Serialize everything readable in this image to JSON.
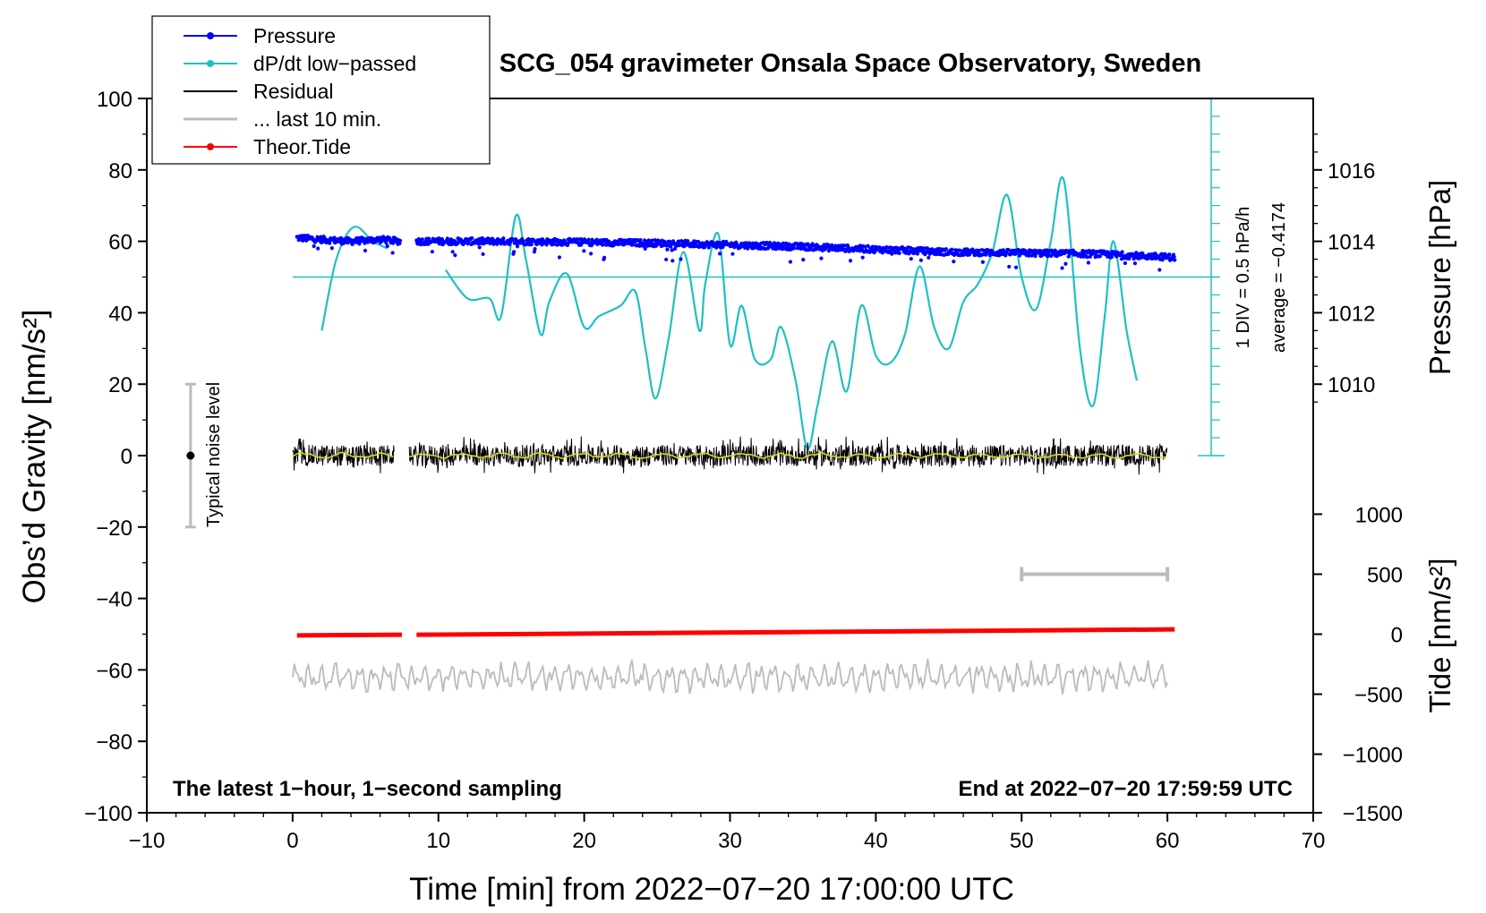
{
  "chart_data": {
    "type": "line",
    "title": "SCG_054 gravimeter Onsala Space Observatory, Sweden",
    "xlabel": "Time [min] from 2022−07−20 17:00:00 UTC",
    "ylabel_left": "Obs’d Gravity [nm/s²]",
    "ylabel_right_pressure": "Pressure [hPa]",
    "ylabel_right_tide": "Tide [nm/s²]",
    "xlim": [
      -10,
      70
    ],
    "ylim_left": [
      -100,
      100
    ],
    "ylim_pressure": [
      1008,
      1018
    ],
    "ylim_tide": [
      -1500,
      1500
    ],
    "x_ticks": [
      -10,
      0,
      10,
      20,
      30,
      40,
      50,
      60,
      70
    ],
    "x_tick_labels": [
      "−10",
      "0",
      "10",
      "20",
      "30",
      "40",
      "50",
      "60",
      "70"
    ],
    "y_left_ticks": [
      -100,
      -80,
      -60,
      -40,
      -20,
      0,
      20,
      40,
      60,
      80,
      100
    ],
    "y_left_tick_labels": [
      "−100",
      "−80",
      "−60",
      "−40",
      "−20",
      "0",
      "20",
      "40",
      "60",
      "80",
      "100"
    ],
    "pressure_ticks": [
      1010,
      1012,
      1014,
      1016
    ],
    "pressure_tick_labels": [
      "1010",
      "1012",
      "1014",
      "1016"
    ],
    "tide_ticks": [
      -1500,
      -1000,
      -500,
      0,
      500,
      1000
    ],
    "tide_tick_labels": [
      "−1500",
      "−1000",
      "−500",
      "0",
      "500",
      "1000"
    ],
    "legend": [
      {
        "label": "Pressure",
        "color": "#0000ff",
        "marker": true
      },
      {
        "label": "dP/dt low−passed",
        "color": "#20c0c0",
        "marker": true
      },
      {
        "label": "Residual",
        "color": "#000000",
        "marker": false
      },
      {
        "label": "... last 10 min.",
        "color": "#bbbbbb",
        "marker": false
      },
      {
        "label": "Theor.Tide",
        "color": "#ff0000",
        "marker": true
      }
    ],
    "legend_position": "top-left",
    "annotations": {
      "bottom_left": "The latest 1−hour, 1−second sampling",
      "bottom_right": "End at 2022−07−20 17:59:59 UTC",
      "noise_label": "Typical noise level",
      "dpdt_scale": "1 DIV = 0.5 hPa/h",
      "dpdt_average": "average = −0.4174"
    },
    "noise_bar": {
      "x": -7,
      "center": 0,
      "range": [
        -20,
        20
      ]
    },
    "last10_bar": {
      "x_range": [
        50,
        60
      ],
      "tide_value": 500
    },
    "dpdt_axis": {
      "x": 63,
      "range": [
        0,
        100
      ],
      "zero_line": 50,
      "divisions": 20
    },
    "pressure_segments": [
      {
        "x": [
          0.3,
          2,
          4,
          6,
          7.4
        ],
        "y": [
          1014.1,
          1014.05,
          1014.0,
          1014.05,
          1014.0
        ]
      },
      {
        "x": [
          8.5,
          15,
          25,
          35,
          45,
          55,
          60.5
        ],
        "y": [
          1014.0,
          1014.0,
          1013.95,
          1013.85,
          1013.7,
          1013.65,
          1013.55
        ]
      }
    ],
    "dpdt": {
      "x": [
        2,
        3,
        4.2,
        5.5,
        6.5
      ],
      "y": [
        35,
        55,
        64,
        60,
        58
      ]
    },
    "dpdt_segment2": {
      "x": [
        10.5,
        12,
        13.5,
        14.3,
        15.3,
        16,
        17,
        17.6,
        18.8,
        20,
        21,
        22.5,
        23.5,
        24.2,
        24.9,
        25.8,
        26.8,
        27.9,
        28.3,
        29.2,
        30,
        30.8,
        31.7,
        32.8,
        33.5,
        34.5,
        35.3,
        36,
        37,
        38,
        39,
        40,
        41,
        42,
        43,
        44,
        45,
        46,
        47,
        48,
        49,
        50,
        51,
        52,
        52.9,
        54,
        54.9,
        55.7,
        56.3,
        57.2,
        57.9
      ],
      "y": [
        52,
        44,
        44,
        39,
        67,
        55,
        34,
        43,
        51,
        36,
        39,
        42,
        46,
        30,
        16,
        33,
        57,
        35,
        48,
        62,
        31,
        42,
        27,
        27,
        36,
        21,
        2,
        14,
        32,
        18,
        42,
        28,
        26,
        34,
        53,
        36,
        30,
        43,
        48,
        57,
        73,
        50,
        41,
        60,
        77,
        30,
        14,
        39,
        60,
        35,
        21
      ]
    },
    "residual": {
      "segments": [
        [
          0,
          7
        ],
        [
          8,
          60
        ]
      ],
      "amplitude": 3.0,
      "center": 0
    },
    "theor_tide": {
      "segments": [
        {
          "x": [
            0.3,
            7.5
          ],
          "y": [
            -10,
            -5
          ]
        },
        {
          "x": [
            8.5,
            60.5
          ],
          "y": [
            -5,
            40
          ]
        }
      ]
    },
    "last10_trace": {
      "x_range": [
        0,
        60
      ],
      "center": -62,
      "amplitude": 4
    }
  }
}
